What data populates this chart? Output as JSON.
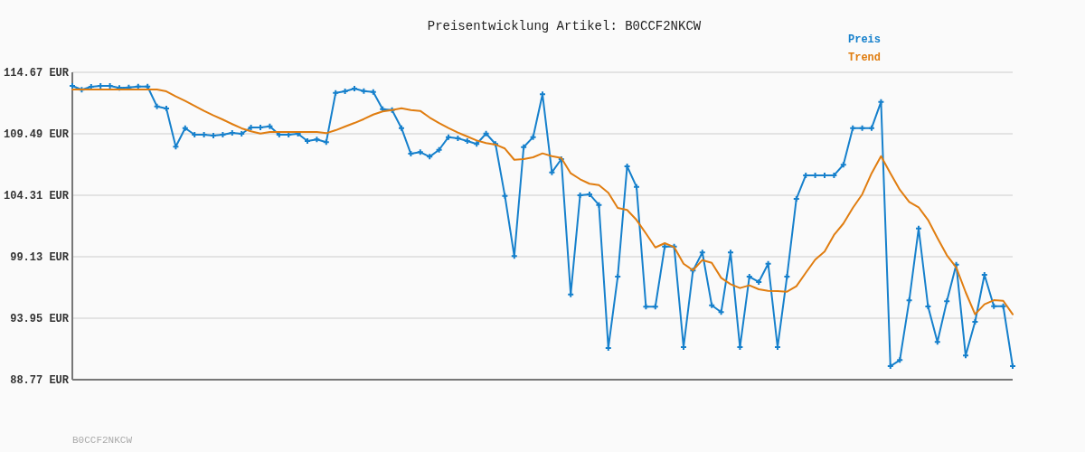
{
  "chart_data": {
    "type": "line",
    "title": "Preisentwicklung Artikel: B0CCF2NKCW",
    "categories": [
      null,
      null,
      null,
      null,
      null,
      null,
      null,
      null,
      null,
      null,
      null,
      null,
      null,
      null,
      null,
      null,
      null,
      null,
      null,
      null,
      null,
      null,
      null,
      null,
      null,
      null,
      null,
      null,
      null,
      null,
      null,
      null,
      null,
      null,
      null,
      null,
      null,
      null,
      null,
      null,
      null,
      null,
      null,
      null,
      null,
      null,
      null,
      null,
      null,
      null,
      null,
      null,
      null,
      null,
      null,
      null,
      null,
      null,
      null,
      null,
      null,
      null,
      null,
      null,
      null,
      null,
      null,
      null,
      null,
      null,
      null,
      null,
      null,
      null,
      null,
      null,
      null,
      null,
      null,
      null,
      null,
      null,
      null,
      null,
      null,
      null,
      null,
      null,
      null,
      null,
      null,
      null,
      null,
      null,
      null,
      null,
      null,
      null,
      null,
      null,
      null
    ],
    "series": [
      {
        "name": "Preis",
        "color": "#1680cc",
        "marker": "cross",
        "values": [
          113.53,
          113.2,
          113.45,
          113.53,
          113.53,
          113.35,
          113.4,
          113.47,
          113.47,
          111.8,
          111.62,
          108.4,
          109.97,
          109.41,
          109.41,
          109.34,
          109.41,
          109.57,
          109.49,
          110.02,
          110.02,
          110.12,
          109.41,
          109.41,
          109.49,
          108.88,
          109.01,
          108.78,
          112.94,
          113.07,
          113.3,
          113.09,
          113.02,
          111.57,
          111.49,
          109.97,
          107.81,
          107.94,
          107.56,
          108.14,
          109.21,
          109.11,
          108.88,
          108.63,
          109.51,
          108.63,
          104.26,
          99.18,
          108.37,
          109.21,
          112.82,
          106.24,
          107.36,
          95.95,
          104.31,
          104.39,
          103.5,
          91.44,
          97.45,
          106.75,
          105.02,
          94.92,
          94.92,
          99.99,
          99.99,
          91.51,
          97.96,
          99.49,
          95.04,
          94.46,
          99.49,
          91.51,
          97.45,
          97.0,
          98.54,
          91.51,
          97.45,
          104.01,
          105.99,
          105.99,
          105.99,
          105.99,
          106.88,
          109.97,
          109.97,
          109.97,
          112.18,
          89.91,
          90.42,
          95.45,
          101.51,
          94.94,
          91.95,
          95.37,
          98.47,
          90.8,
          93.65,
          97.61,
          94.96,
          94.96,
          89.91
        ]
      },
      {
        "name": "Trend",
        "color": "#e07d10",
        "marker": "none",
        "values": [
          113.22,
          113.22,
          113.22,
          113.22,
          113.22,
          113.22,
          113.22,
          113.22,
          113.22,
          113.22,
          113.07,
          112.64,
          112.26,
          111.85,
          111.42,
          111.04,
          110.69,
          110.31,
          109.95,
          109.7,
          109.51,
          109.64,
          109.64,
          109.64,
          109.64,
          109.64,
          109.64,
          109.54,
          109.79,
          110.1,
          110.4,
          110.73,
          111.11,
          111.37,
          111.49,
          111.65,
          111.49,
          111.42,
          110.86,
          110.4,
          109.97,
          109.59,
          109.26,
          108.93,
          108.71,
          108.58,
          108.25,
          107.3,
          107.36,
          107.51,
          107.84,
          107.61,
          107.46,
          106.16,
          105.66,
          105.28,
          105.17,
          104.52,
          103.24,
          103.07,
          102.23,
          101.09,
          99.91,
          100.27,
          99.94,
          98.54,
          97.99,
          98.85,
          98.62,
          97.35,
          96.82,
          96.49,
          96.72,
          96.39,
          96.26,
          96.24,
          96.18,
          96.64,
          97.78,
          98.88,
          99.56,
          100.96,
          101.93,
          103.24,
          104.39,
          106.16,
          107.61,
          106.16,
          104.77,
          103.75,
          103.3,
          102.23,
          100.71,
          99.26,
          98.22,
          96.14,
          94.28,
          95.12,
          95.47,
          95.42,
          94.28
        ]
      }
    ],
    "ylim": [
      88.77,
      114.67
    ],
    "yticks": [
      {
        "value": 88.77,
        "label": "88.77 EUR"
      },
      {
        "value": 93.95,
        "label": "93.95 EUR"
      },
      {
        "value": 99.13,
        "label": "99.13 EUR"
      },
      {
        "value": 104.31,
        "label": "104.31 EUR"
      },
      {
        "value": 109.49,
        "label": "109.49 EUR"
      },
      {
        "value": 114.67,
        "label": "114.67 EUR"
      }
    ],
    "grid": "y",
    "legend": "top right",
    "line_style": "solid",
    "annotations": [
      "B0CCF2NKCW"
    ]
  }
}
